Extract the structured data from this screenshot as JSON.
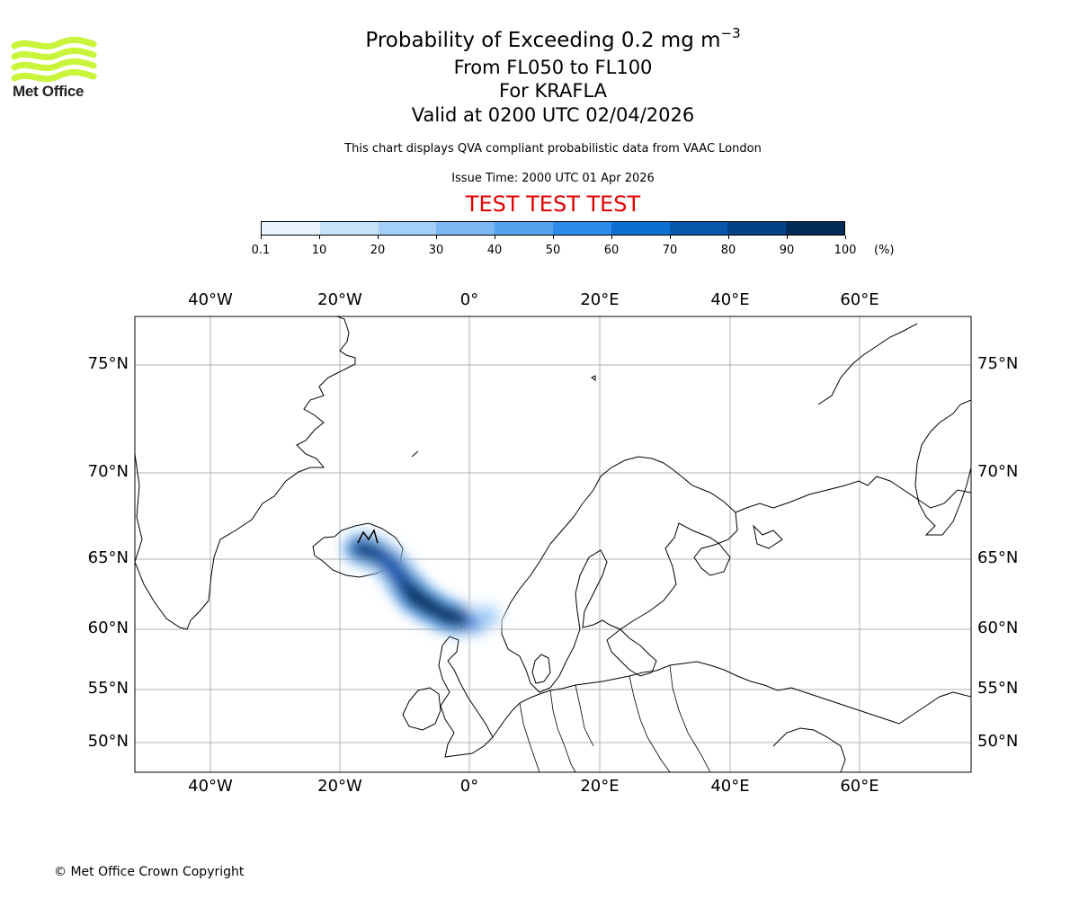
{
  "brand": {
    "name": "Met Office",
    "logo_color": "#c8f53a"
  },
  "title": {
    "main_prefix": "Probability of Exceeding 0.2 mg m",
    "main_sup": "−3",
    "levels": "From FL050 to FL100",
    "volcano": "For KRAFLA",
    "valid": "Valid at 0200 UTC 02/04/2026"
  },
  "note": "This chart displays QVA compliant probabilistic data from VAAC London",
  "issue_time": "Issue Time: 2000 UTC 01 Apr 2026",
  "test_banner": {
    "text": "TEST TEST TEST",
    "color": "#e00000"
  },
  "colorbar": {
    "tick_labels": [
      "0.1",
      "10",
      "20",
      "30",
      "40",
      "50",
      "60",
      "70",
      "80",
      "90",
      "100"
    ],
    "unit": "(%)",
    "colors": [
      "#eaf4fe",
      "#c6e2fb",
      "#a2cef8",
      "#7cb8f4",
      "#55a2ef",
      "#2d8cea",
      "#0d6fd1",
      "#0857ad",
      "#044285",
      "#012c5a"
    ]
  },
  "map": {
    "lon_labels": [
      "40°W",
      "20°W",
      "0°",
      "20°E",
      "40°E",
      "60°E"
    ],
    "lat_labels": [
      "75°N",
      "70°N",
      "65°N",
      "60°N",
      "55°N",
      "50°N"
    ],
    "gridline_color": "#b0b0b0",
    "plume_probabilities": [
      {
        "lon": -16.5,
        "lat": 65.6,
        "p": 85
      },
      {
        "lon": -14.5,
        "lat": 65.3,
        "p": 80
      },
      {
        "lon": -12.5,
        "lat": 64.8,
        "p": 75
      },
      {
        "lon": -11.0,
        "lat": 64.0,
        "p": 70
      },
      {
        "lon": -9.5,
        "lat": 63.0,
        "p": 80
      },
      {
        "lon": -8.0,
        "lat": 62.2,
        "p": 90
      },
      {
        "lon": -6.0,
        "lat": 61.6,
        "p": 95
      },
      {
        "lon": -3.5,
        "lat": 61.0,
        "p": 95
      },
      {
        "lon": -1.0,
        "lat": 60.7,
        "p": 90
      },
      {
        "lon": 1.0,
        "lat": 60.6,
        "p": 60
      },
      {
        "lon": 2.5,
        "lat": 60.9,
        "p": 25
      }
    ]
  },
  "copyright": "© Met Office Crown Copyright"
}
